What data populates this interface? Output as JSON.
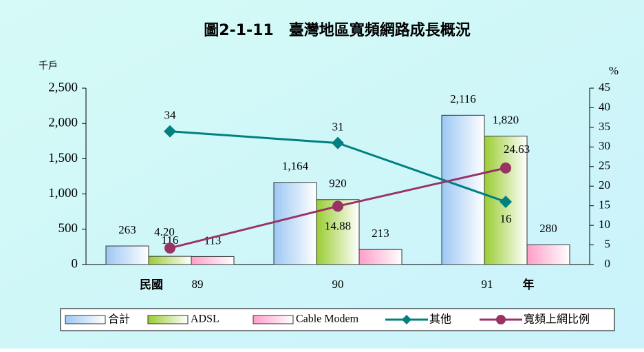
{
  "chart_data": {
    "type": "bar",
    "title": "圖2-1-11　臺灣地區寬頻網路成長概況",
    "y_label": "千戶",
    "y2_label": "%",
    "annotations": [
      "民國",
      "年"
    ],
    "categories": [
      "89",
      "90",
      "91"
    ],
    "series": [
      {
        "name": "合計",
        "type": "bar",
        "color": "#9cc8f4",
        "values": [
          263,
          1164,
          2116
        ],
        "value_labels": [
          "263",
          "1,164",
          "2,116"
        ]
      },
      {
        "name": "ADSL",
        "type": "bar",
        "color": "#9acd32",
        "values": [
          116,
          920,
          1820
        ],
        "value_labels": [
          "116",
          "920",
          "1,820"
        ]
      },
      {
        "name": "Cable Modem",
        "type": "bar",
        "color": "#ff9ec8",
        "values": [
          113,
          213,
          280
        ],
        "value_labels": [
          "113",
          "213",
          "280"
        ]
      },
      {
        "name": "其他",
        "type": "line",
        "axis": "y2",
        "color": "#008080",
        "marker": "diamond",
        "values": [
          34,
          31,
          16
        ]
      },
      {
        "name": "寬頻上網比例",
        "type": "line",
        "axis": "y2",
        "color": "#993366",
        "marker": "circle",
        "values": [
          4.2,
          14.88,
          24.63
        ],
        "value_labels": [
          "4.20",
          "14.88",
          "24.63"
        ]
      }
    ],
    "ylim": [
      0,
      2500
    ],
    "yticks": [
      0,
      500,
      {
        "value": 1000,
        "label": "1,000"
      },
      {
        "value": 1500,
        "label": "1,500"
      },
      {
        "value": 2000,
        "label": "2,000"
      },
      {
        "value": 2500,
        "label": "2,500"
      }
    ],
    "y2lim": [
      0,
      45
    ],
    "y2ticks": [
      0,
      5,
      10,
      15,
      20,
      25,
      30,
      35,
      40,
      45
    ],
    "legend": "bottom"
  }
}
